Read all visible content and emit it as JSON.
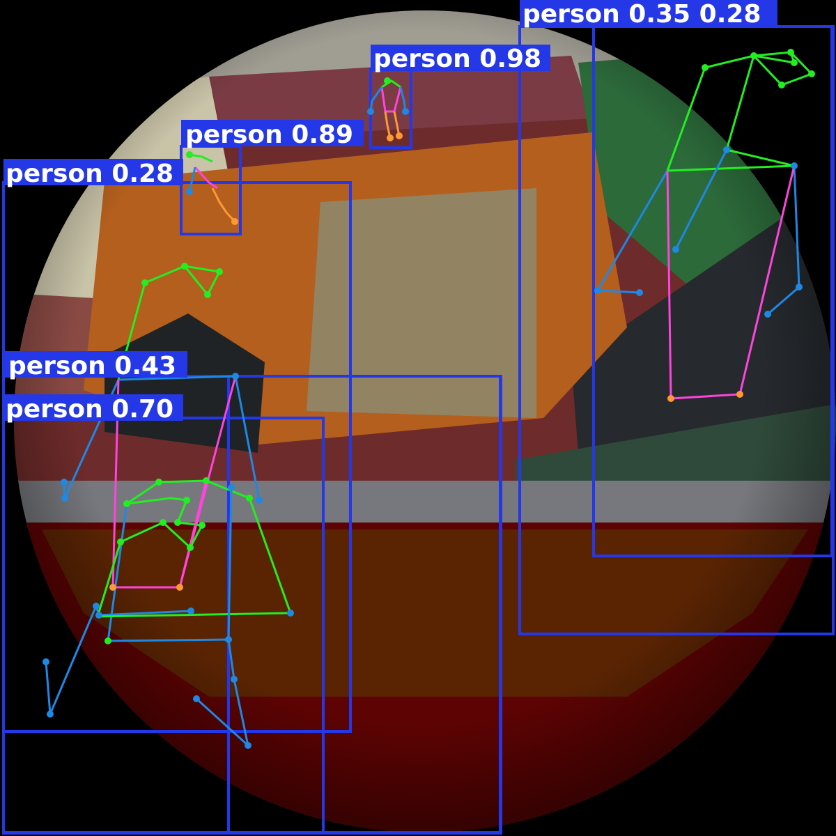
{
  "detections": [
    {
      "class": "person",
      "score": "0.98"
    },
    {
      "class": "person",
      "score": "0.89"
    },
    {
      "class": "person",
      "score": "0.28"
    },
    {
      "class": "person",
      "score": "0.43"
    },
    {
      "class": "person",
      "score": "0.70"
    },
    {
      "class": "person",
      "score": "0.35"
    },
    {
      "class": "person",
      "score": "0.28"
    }
  ],
  "colors": {
    "box": "#2438e8",
    "label_bg": "#2438e8",
    "label_text": "#ffffff",
    "limb_green": "#22ee22",
    "limb_blue": "#1e88e5",
    "limb_pink": "#ff44dd",
    "limb_orange": "#ff9933"
  }
}
